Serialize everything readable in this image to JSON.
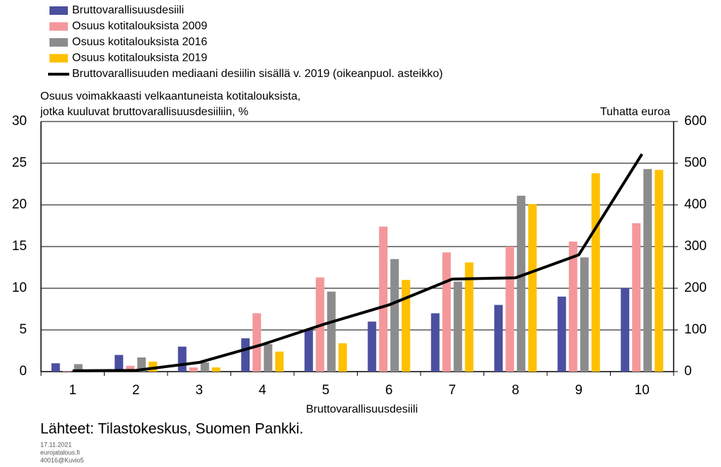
{
  "chart_data": {
    "type": "bar",
    "y_label_lines": [
      "Osuus voimakkaasti velkaantuneista kotitalouksista,",
      "jotka kuuluvat bruttovarallisuusdesiiliin, %"
    ],
    "y2_label": "Tuhatta euroa",
    "x_label": "Bruttovarallisuusdesiili",
    "source": "Lähteet: Tilastokeskus, Suomen Pankki.",
    "footer": [
      "17.11.2021",
      "eurojatalous.fi",
      "40016@Kuvio5"
    ],
    "categories": [
      "1",
      "2",
      "3",
      "4",
      "5",
      "6",
      "7",
      "8",
      "9",
      "10"
    ],
    "series": [
      {
        "name": "Bruttovarallisuusdesiili",
        "color": "#4b4fa0",
        "values": [
          1,
          2,
          3,
          4,
          5,
          6,
          7,
          8,
          9,
          10
        ]
      },
      {
        "name": "Osuus kotitalouksista 2009",
        "color": "#f4979a",
        "values": [
          0.1,
          0.7,
          0.5,
          7,
          11.3,
          17.4,
          14.3,
          15,
          15.6,
          17.8
        ]
      },
      {
        "name": "Osuus kotitalouksista 2016",
        "color": "#8c8c8c",
        "values": [
          0.9,
          1.7,
          1.1,
          3.3,
          9.6,
          13.5,
          10.8,
          21.1,
          13.7,
          24.3
        ]
      },
      {
        "name": "Osuus kotitalouksista 2019",
        "color": "#ffc000",
        "values": [
          0,
          1.2,
          0.5,
          2.4,
          3.4,
          11,
          13.1,
          20.1,
          23.8,
          24.2
        ]
      },
      {
        "name": "Bruttovarallisuuden mediaani desiilin sisällä v. 2019 (oikeanpuol. asteikko)",
        "color": "#000000",
        "type": "line",
        "axis": "y2",
        "values": [
          2,
          3,
          22,
          65,
          115,
          160,
          222,
          225,
          280,
          522
        ]
      }
    ],
    "ylim": [
      0,
      30
    ],
    "yticks": [
      0,
      5,
      10,
      15,
      20,
      25,
      30
    ],
    "y2lim": [
      0,
      600
    ],
    "y2ticks": [
      0,
      100,
      200,
      300,
      400,
      500,
      600
    ],
    "grid": true
  }
}
